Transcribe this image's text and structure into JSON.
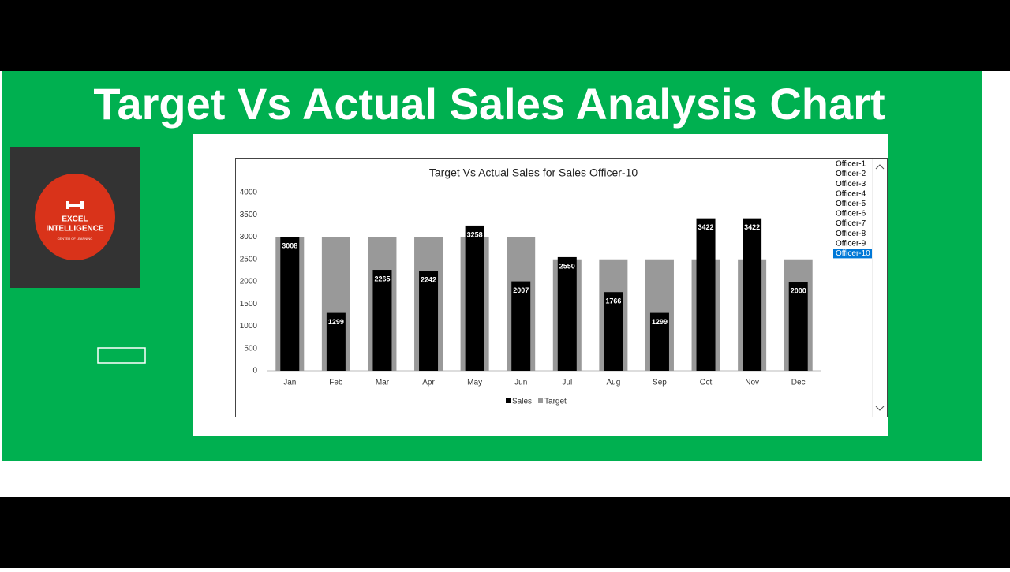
{
  "header": {
    "title": "Target Vs Actual Sales Analysis Chart"
  },
  "logo": {
    "line1": "EXCEL",
    "line2": "INTELLIGENCE",
    "tagline": "CENTER OF LEARNING"
  },
  "listbox": {
    "items": [
      "Officer-1",
      "Officer-2",
      "Officer-3",
      "Officer-4",
      "Officer-5",
      "Officer-6",
      "Officer-7",
      "Officer-8",
      "Officer-9",
      "Officer-10"
    ],
    "selected_index": 9
  },
  "chart_data": {
    "type": "bar",
    "title": "Target Vs Actual Sales for Sales Officer-10",
    "categories": [
      "Jan",
      "Feb",
      "Mar",
      "Apr",
      "May",
      "Jun",
      "Jul",
      "Aug",
      "Sep",
      "Oct",
      "Nov",
      "Dec"
    ],
    "series": [
      {
        "name": "Sales",
        "color": "#000000",
        "values": [
          3008,
          1299,
          2265,
          2242,
          3258,
          2007,
          2550,
          1766,
          1299,
          3422,
          3422,
          2000
        ]
      },
      {
        "name": "Target",
        "color": "#999999",
        "values": [
          3000,
          3000,
          3000,
          3000,
          3000,
          3000,
          2500,
          2500,
          2500,
          2500,
          2500,
          2500
        ]
      }
    ],
    "ylim": [
      0,
      4000
    ],
    "yticks": [
      0,
      500,
      1000,
      1500,
      2000,
      2500,
      3000,
      3500,
      4000
    ],
    "data_labels": true,
    "legend": "bottom"
  }
}
